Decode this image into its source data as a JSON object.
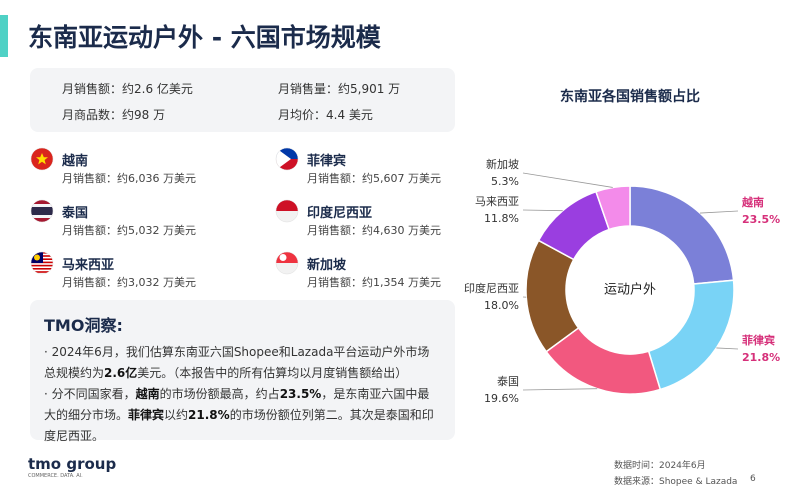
{
  "header": {
    "title": "东南亚运动户外 - 六国市场规模"
  },
  "summary": [
    "月销售额：约2.6 亿美元",
    "月销售量：约5,901 万",
    "月商品数：约98 万",
    "月均价：4.4 美元"
  ],
  "countries": [
    {
      "name": "越南",
      "sales": "月销售额：约6,036 万美元"
    },
    {
      "name": "菲律宾",
      "sales": "月销售额：约5,607 万美元"
    },
    {
      "name": "泰国",
      "sales": "月销售额：约5,032 万美元"
    },
    {
      "name": "印度尼西亚",
      "sales": "月销售额：约4,630 万美元"
    },
    {
      "name": "马来西亚",
      "sales": "月销售额：约3,032 万美元"
    },
    {
      "name": "新加坡",
      "sales": "月销售额：约1,354 万美元"
    }
  ],
  "insight": {
    "title": "TMO洞察:",
    "bullets": [
      [
        {
          "text": "2024年6月，我们估算东南亚六国Shopee和Lazada平台运动户外市场总规模约为"
        },
        {
          "text": "2.6亿",
          "bold": true
        },
        {
          "text": "美元。（本报告中的所有估算均以月度销售额给出）"
        }
      ],
      [
        {
          "text": "分不同国家看，"
        },
        {
          "text": "越南",
          "bold": true
        },
        {
          "text": "的市场份额最高，约占"
        },
        {
          "text": "23.5%",
          "bold": true
        },
        {
          "text": "，是东南亚六国中最大的细分市场。"
        },
        {
          "text": "菲律宾",
          "bold": true
        },
        {
          "text": "以约"
        },
        {
          "text": "21.8%",
          "bold": true
        },
        {
          "text": "的市场份额位列第二。其次是泰国和印度尼西亚。"
        }
      ]
    ]
  },
  "footer": {
    "logo": "tmo group",
    "tagline": "COMMERCE. DATA. AI.",
    "date": "数据时间：2024年6月",
    "source": "数据来源：Shopee & Lazada",
    "page": "6"
  },
  "chart_data": {
    "type": "donut",
    "title": "东南亚各国销售额占比",
    "center_label": "运动户外",
    "categories": [
      "越南",
      "菲律宾",
      "泰国",
      "印度尼西亚",
      "马来西亚",
      "新加坡"
    ],
    "values": [
      23.5,
      21.8,
      19.6,
      18.0,
      11.8,
      5.3
    ],
    "value_labels": [
      "23.5%",
      "21.8%",
      "19.6%",
      "18.0%",
      "11.8%",
      "5.3%"
    ],
    "colors": [
      "#7b80d8",
      "#79d3f6",
      "#f2587f",
      "#8a5628",
      "#9a3ee0",
      "#f38bea"
    ],
    "highlight": [
      true,
      true,
      false,
      false,
      false,
      false
    ],
    "highlight_color": "#d6307a"
  }
}
